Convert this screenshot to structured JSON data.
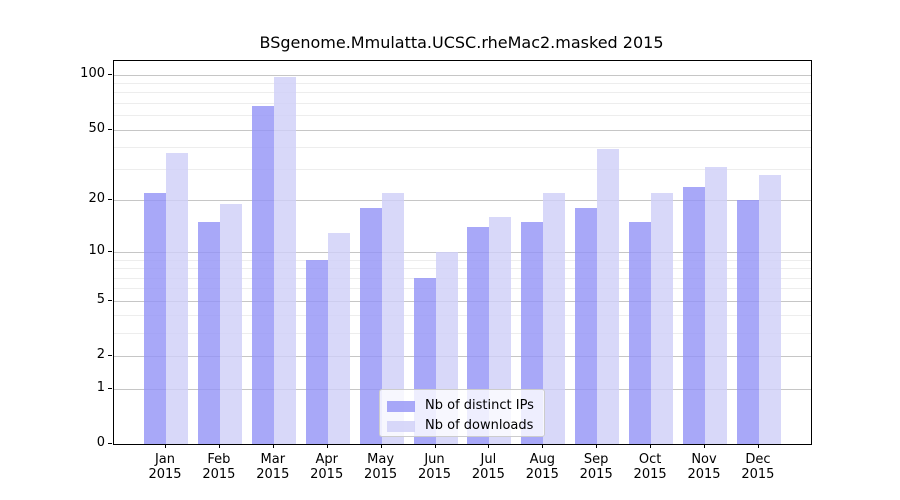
{
  "chart_data": {
    "type": "bar",
    "title": "BSgenome.Mmulatta.UCSC.rheMac2.masked 2015",
    "categories": [
      "Jan",
      "Feb",
      "Mar",
      "Apr",
      "May",
      "Jun",
      "Jul",
      "Aug",
      "Sep",
      "Oct",
      "Nov",
      "Dec"
    ],
    "category_year": "2015",
    "series": [
      {
        "name": "Nb of distinct IPs",
        "color": "rgba(146,146,246,0.8)",
        "values": [
          22,
          15,
          67,
          9,
          18,
          7,
          14,
          15,
          18,
          15,
          24,
          20
        ]
      },
      {
        "name": "Nb of downloads",
        "color": "rgba(206,206,247,0.8)",
        "values": [
          37,
          19,
          97,
          13,
          22,
          10,
          16,
          22,
          39,
          22,
          31,
          28
        ]
      }
    ],
    "yscale": "log1p",
    "ylim": [
      0,
      120
    ],
    "yticks": [
      100,
      50,
      20,
      10,
      5,
      2,
      1,
      0
    ],
    "yticks_minor": [
      90,
      80,
      70,
      60,
      40,
      30,
      9,
      8,
      7,
      6,
      4,
      3
    ],
    "grid": true,
    "legend_position": "lower-center-inside"
  },
  "colors": {
    "major_grid": "#c6c6c6",
    "minor_grid": "#ededed",
    "spine": "#000000",
    "legend_border": "#cccccc"
  }
}
